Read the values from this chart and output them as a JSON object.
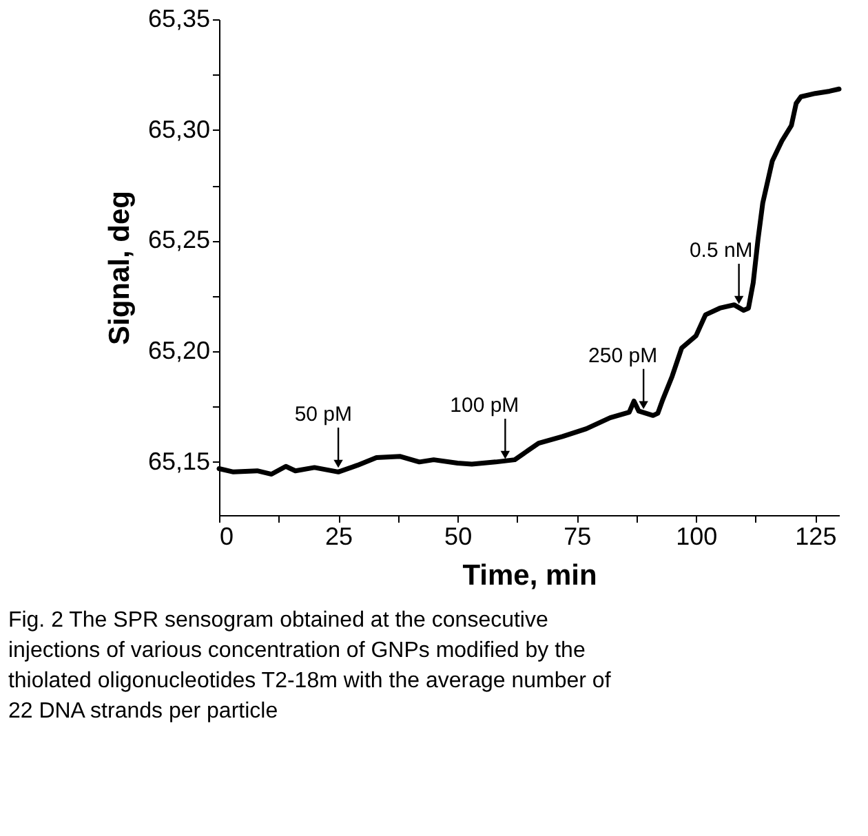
{
  "chart_data": {
    "type": "line",
    "xlabel": "Time, min",
    "ylabel": "Signal, deg",
    "x": [
      0,
      3,
      8,
      11,
      14,
      16,
      20,
      25,
      29,
      33,
      38,
      42,
      45,
      50,
      53,
      58,
      62,
      67,
      72,
      77,
      82,
      86,
      87,
      88,
      91,
      92,
      93,
      95,
      97,
      100,
      102,
      105,
      108,
      110,
      111,
      112,
      113,
      114,
      116,
      118,
      120,
      121,
      122,
      125,
      128,
      130
    ],
    "series": [
      {
        "color": "#000000",
        "values": [
          65.147,
          65.1455,
          65.146,
          65.1445,
          65.148,
          65.146,
          65.1475,
          65.1455,
          65.1485,
          65.152,
          65.1525,
          65.15,
          65.151,
          65.1495,
          65.149,
          65.15,
          65.151,
          65.1585,
          65.1615,
          65.165,
          65.17,
          65.1725,
          65.1775,
          65.173,
          65.171,
          65.172,
          65.178,
          65.1887,
          65.2015,
          65.207,
          65.2165,
          65.2195,
          65.221,
          65.2185,
          65.2195,
          65.231,
          65.2505,
          65.267,
          65.286,
          65.295,
          65.302,
          65.312,
          65.315,
          65.3165,
          65.3175,
          65.3185
        ]
      }
    ],
    "xlim": [
      0,
      130
    ],
    "xticks": [
      0,
      {
        "value": 12.5,
        "label": null
      },
      25,
      {
        "value": 37.5,
        "label": null
      },
      50,
      {
        "value": 62.5,
        "label": null
      },
      75,
      {
        "value": 87.5,
        "label": null
      },
      100,
      {
        "value": 112.5,
        "label": null
      },
      125
    ],
    "ylim": [
      65.126,
      65.35
    ],
    "yticks": [
      {
        "value": 65.15,
        "label": "65,15"
      },
      {
        "value": 65.175,
        "label": null
      },
      {
        "value": 65.2,
        "label": "65,20"
      },
      {
        "value": 65.225,
        "label": null
      },
      {
        "value": 65.25,
        "label": "65,25"
      },
      {
        "value": 65.275,
        "label": null
      },
      {
        "value": 65.3,
        "label": "65,30"
      },
      {
        "value": 65.325,
        "label": null
      },
      {
        "value": 65.35,
        "label": "65,35"
      }
    ],
    "grid": false,
    "marker": "none",
    "line_style": "solid",
    "annotations": [
      {
        "text": "50 pM",
        "x": 25,
        "y": 65.1465
      },
      {
        "text": "100 pM",
        "x": 60,
        "y": 65.1505
      },
      {
        "text": "250 pM",
        "x": 89,
        "y": 65.173
      },
      {
        "text": "0.5 nM",
        "x": 109,
        "y": 65.2205
      },
      "Fig. 2 The SPR sensogram obtained at the consecutive injections of various concentration of GNPs modified by the thiolated oligonucleotides T2-18m with the average number of 22 DNA strands per particle"
    ]
  }
}
